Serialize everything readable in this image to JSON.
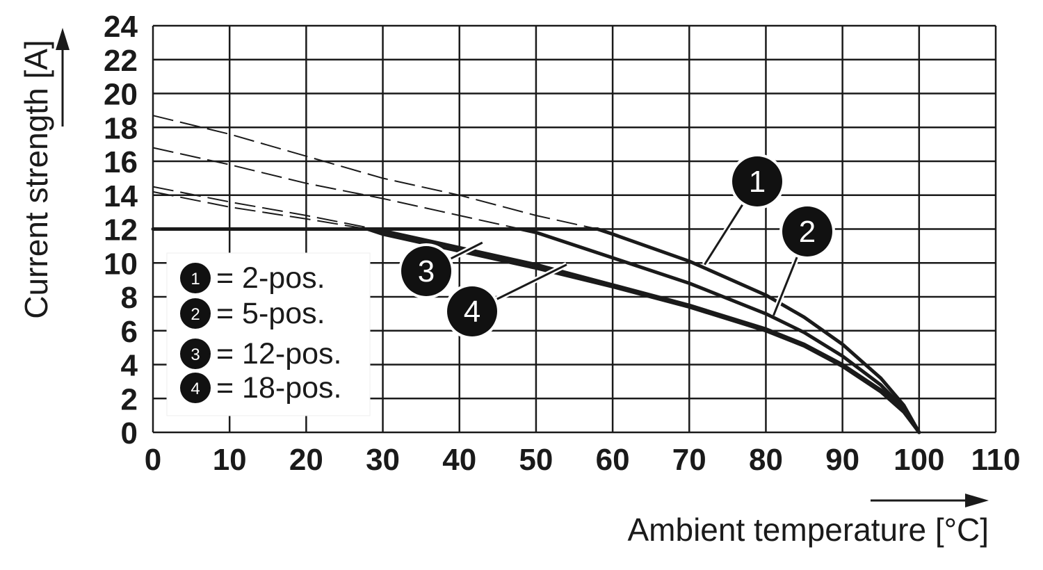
{
  "chart_data": {
    "type": "line",
    "xlabel": "Ambient temperature [°C]",
    "ylabel": "Current strength [A]",
    "xlim": [
      0,
      110
    ],
    "ylim": [
      0,
      24
    ],
    "x_ticks": [
      "0",
      "10",
      "20",
      "30",
      "40",
      "50",
      "60",
      "70",
      "80",
      "90",
      "100",
      "110"
    ],
    "y_ticks": [
      "0",
      "2",
      "4",
      "6",
      "8",
      "10",
      "12",
      "14",
      "16",
      "18",
      "20",
      "22",
      "24"
    ],
    "grid": true,
    "rated_current": 12,
    "legend": {
      "placement": "left",
      "entries": [
        {
          "marker": "1",
          "label": "= 2-pos."
        },
        {
          "marker": "2",
          "label": "= 5-pos."
        },
        {
          "marker": "3",
          "label": "= 12-pos."
        },
        {
          "marker": "4",
          "label": "= 18-pos."
        }
      ]
    },
    "series": [
      {
        "marker": "1",
        "x": [
          0,
          10,
          20,
          30,
          40,
          50,
          58,
          60,
          70,
          80,
          85,
          90,
          95,
          98,
          100
        ],
        "y": [
          18.7,
          17.6,
          16.3,
          15.0,
          14.0,
          12.8,
          12,
          11.7,
          10.1,
          8.1,
          6.8,
          5.2,
          3.2,
          1.6,
          0
        ]
      },
      {
        "marker": "2",
        "x": [
          0,
          10,
          20,
          30,
          40,
          48,
          50,
          60,
          70,
          80,
          85,
          90,
          95,
          98,
          100
        ],
        "y": [
          16.8,
          15.8,
          14.7,
          13.8,
          12.8,
          12,
          11.8,
          10.3,
          8.8,
          7.0,
          5.9,
          4.5,
          2.8,
          1.4,
          0
        ]
      },
      {
        "marker": "3",
        "x": [
          0,
          10,
          20,
          29,
          30,
          40,
          50,
          60,
          70,
          80,
          85,
          90,
          95,
          98,
          100
        ],
        "y": [
          14.5,
          13.6,
          12.8,
          12,
          11.9,
          10.9,
          9.9,
          8.7,
          7.5,
          6.1,
          5.2,
          4.0,
          2.5,
          1.3,
          0
        ]
      },
      {
        "marker": "4",
        "x": [
          0,
          10,
          20,
          28,
          30,
          40,
          50,
          60,
          70,
          80,
          85,
          90,
          95,
          98,
          100
        ],
        "y": [
          14.2,
          13.3,
          12.6,
          12,
          11.7,
          10.7,
          9.7,
          8.6,
          7.4,
          6.0,
          5.1,
          3.9,
          2.4,
          1.2,
          0
        ]
      }
    ],
    "callouts": [
      {
        "marker": "1",
        "target": [
          72,
          9.9
        ]
      },
      {
        "marker": "2",
        "target": [
          81,
          6.9
        ]
      },
      {
        "marker": "3",
        "target": [
          43,
          11.2
        ]
      },
      {
        "marker": "4",
        "target": [
          54,
          9.9
        ]
      }
    ]
  }
}
